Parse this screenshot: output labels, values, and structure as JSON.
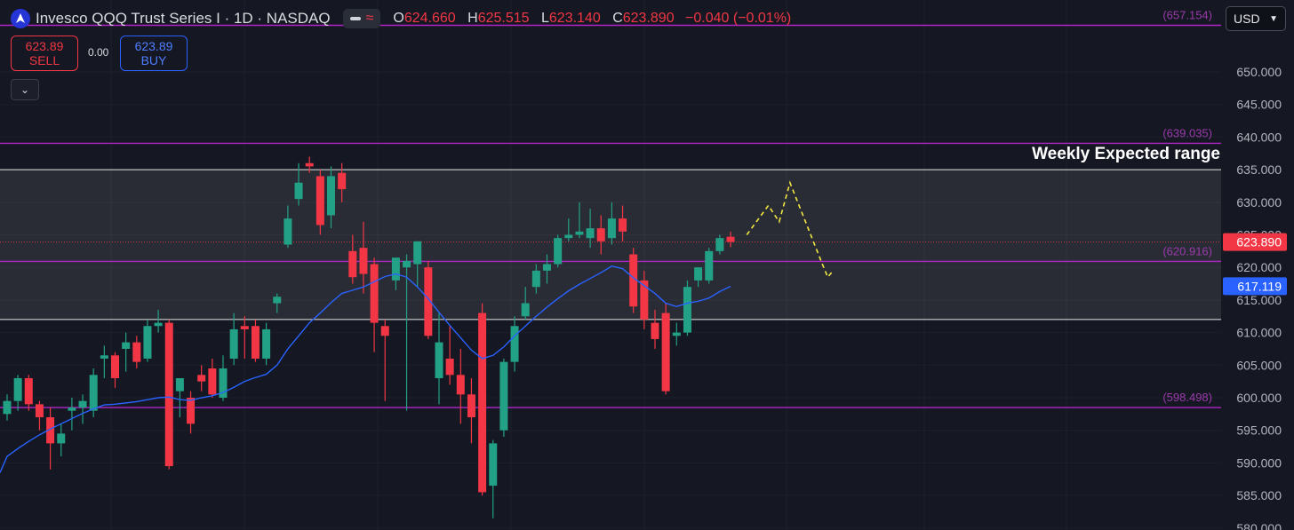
{
  "header": {
    "symbol_title": "Invesco QQQ Trust Series I · 1D · NASDAQ",
    "open_label": "O",
    "open": "624.660",
    "high_label": "H",
    "high": "625.515",
    "low_label": "L",
    "low": "623.140",
    "close_label": "C",
    "close": "623.890",
    "change": "−0.040 (−0.01%)"
  },
  "trade": {
    "sell_price": "623.89",
    "sell_label": "SELL",
    "spread": "0.00",
    "buy_price": "623.89",
    "buy_label": "BUY"
  },
  "currency": "USD",
  "chart_data": {
    "type": "candlestick",
    "ylim": [
      580,
      657.5
    ],
    "y_ticks": [
      "650.000",
      "645.000",
      "640.000",
      "635.000",
      "630.000",
      "625.000",
      "620.000",
      "615.000",
      "610.000",
      "605.000",
      "600.000",
      "595.000",
      "590.000",
      "585.000",
      "580.000"
    ],
    "candles": [
      [
        597.5,
        600.5,
        596.5,
        599.5
      ],
      [
        599.5,
        603.5,
        598.0,
        603.0
      ],
      [
        603.0,
        603.5,
        598.0,
        599.0
      ],
      [
        599.0,
        599.5,
        595.0,
        597.0
      ],
      [
        597.0,
        598.5,
        589.0,
        593.0
      ],
      [
        593.0,
        596.0,
        591.0,
        594.5
      ],
      [
        598.0,
        600.0,
        595.0,
        598.5
      ],
      [
        598.5,
        600.5,
        596.0,
        599.5
      ],
      [
        598.0,
        604.5,
        597.0,
        603.5
      ],
      [
        606.0,
        608.0,
        603.0,
        606.5
      ],
      [
        606.5,
        607.0,
        601.5,
        603.0
      ],
      [
        607.5,
        610.0,
        604.0,
        608.5
      ],
      [
        608.5,
        609.5,
        604.5,
        605.5
      ],
      [
        606.0,
        612.0,
        605.5,
        611.0
      ],
      [
        611.0,
        613.5,
        610.0,
        611.5
      ],
      [
        611.5,
        612.0,
        589.0,
        589.5
      ],
      [
        601.0,
        603.0,
        597.0,
        603.0
      ],
      [
        600.0,
        601.0,
        594.5,
        596.0
      ],
      [
        603.5,
        605.0,
        601.0,
        602.5
      ],
      [
        604.5,
        606.0,
        600.0,
        600.5
      ],
      [
        600.0,
        606.5,
        599.5,
        604.5
      ],
      [
        606.0,
        613.0,
        605.0,
        610.5
      ],
      [
        611.0,
        612.5,
        606.0,
        610.5
      ],
      [
        611.0,
        612.0,
        605.5,
        606.0
      ],
      [
        606.0,
        611.5,
        605.0,
        610.5
      ],
      [
        614.5,
        616.0,
        613.0,
        615.5
      ],
      [
        623.5,
        629.5,
        623.0,
        627.5
      ],
      [
        630.5,
        636.0,
        629.5,
        633.0
      ],
      [
        636.0,
        637.0,
        634.5,
        635.5
      ],
      [
        634.0,
        635.0,
        625.0,
        626.5
      ],
      [
        628.0,
        635.5,
        626.0,
        634.0
      ],
      [
        634.5,
        636.0,
        630.0,
        632.0
      ],
      [
        622.5,
        625.0,
        617.5,
        618.5
      ],
      [
        623.0,
        627.0,
        616.0,
        619.0
      ],
      [
        620.5,
        621.5,
        607.0,
        611.5
      ],
      [
        611.0,
        612.0,
        599.5,
        609.5
      ],
      [
        618.0,
        621.5,
        616.5,
        621.5
      ],
      [
        620.0,
        622.0,
        598.0,
        621.0
      ],
      [
        620.5,
        624.0,
        617.0,
        624.0
      ],
      [
        620.0,
        621.0,
        609.0,
        609.5
      ],
      [
        603.0,
        613.0,
        599.0,
        608.5
      ],
      [
        606.0,
        611.0,
        602.0,
        603.5
      ],
      [
        603.5,
        607.5,
        596.0,
        600.5
      ],
      [
        600.5,
        603.0,
        593.0,
        597.0
      ],
      [
        613.0,
        614.5,
        585.0,
        585.5
      ],
      [
        586.5,
        593.5,
        581.5,
        593.0
      ],
      [
        595.0,
        606.0,
        594.0,
        605.5
      ],
      [
        605.5,
        612.5,
        604.0,
        611.0
      ],
      [
        612.5,
        617.0,
        612.0,
        614.5
      ],
      [
        617.0,
        620.5,
        616.0,
        619.5
      ],
      [
        619.5,
        622.0,
        617.5,
        620.5
      ],
      [
        620.5,
        625.0,
        620.0,
        624.5
      ],
      [
        624.5,
        627.5,
        624.0,
        625.0
      ],
      [
        625.0,
        630.0,
        624.5,
        625.5
      ],
      [
        624.5,
        629.0,
        623.0,
        626.0
      ],
      [
        626.0,
        628.0,
        622.0,
        624.0
      ],
      [
        624.5,
        630.0,
        623.5,
        627.5
      ],
      [
        627.5,
        629.5,
        624.0,
        625.5
      ],
      [
        622.0,
        623.0,
        613.0,
        614.0
      ],
      [
        618.0,
        619.5,
        610.5,
        612.0
      ],
      [
        611.5,
        613.5,
        607.5,
        609.0
      ],
      [
        613.0,
        614.5,
        600.5,
        601.0
      ],
      [
        609.5,
        611.5,
        608.0,
        610.0
      ],
      [
        610.0,
        618.0,
        609.5,
        617.0
      ],
      [
        618.0,
        620.0,
        617.0,
        620.0
      ],
      [
        618.0,
        623.0,
        617.5,
        622.5
      ],
      [
        622.5,
        625.0,
        622.0,
        624.5
      ],
      [
        624.7,
        625.5,
        623.1,
        623.9
      ]
    ],
    "ma": [
      591.0,
      592.2,
      593.3,
      594.3,
      595.2,
      596.0,
      596.8,
      597.6,
      598.3,
      598.9,
      599.0,
      599.2,
      599.4,
      599.7,
      600.0,
      600.1,
      599.7,
      599.6,
      600.0,
      600.3,
      600.8,
      601.6,
      602.5,
      603.1,
      603.6,
      605.0,
      607.5,
      609.5,
      611.5,
      613.0,
      614.6,
      616.0,
      616.5,
      617.0,
      617.8,
      618.6,
      619.0,
      618.5,
      617.0,
      615.2,
      613.1,
      611.1,
      609.2,
      607.3,
      606.0,
      606.5,
      607.8,
      609.5,
      611.0,
      612.5,
      613.9,
      615.2,
      616.4,
      617.4,
      618.3,
      619.2,
      620.2,
      619.8,
      618.4,
      617.2,
      616.0,
      614.5,
      614.0,
      614.5,
      614.8,
      615.3,
      616.3,
      617.1
    ],
    "hlines": [
      {
        "value": 657.154,
        "label": "(657.154)",
        "color": "#b024c8"
      },
      {
        "value": 639.035,
        "label": "(639.035)",
        "color": "#b024c8"
      },
      {
        "value": 620.916,
        "label": "(620.916)",
        "color": "#b024c8"
      },
      {
        "value": 598.498,
        "label": "(598.498)",
        "color": "#b024c8"
      }
    ],
    "expected_range": {
      "low": 612.0,
      "high": 635.0,
      "label": "Weekly Expected range"
    },
    "current_price": {
      "value": 623.89,
      "label": "623.890",
      "color": "#f23645"
    },
    "ma_value": {
      "value": 617.119,
      "label": "617.119",
      "color": "#2962ff"
    },
    "projection": [
      [
        68.5,
        625.0
      ],
      [
        70.5,
        629.5
      ],
      [
        71.5,
        627.0
      ],
      [
        72.5,
        633.0
      ],
      [
        75.5,
        620.5
      ],
      [
        76,
        618.5
      ],
      [
        76.5,
        619.5
      ]
    ]
  }
}
